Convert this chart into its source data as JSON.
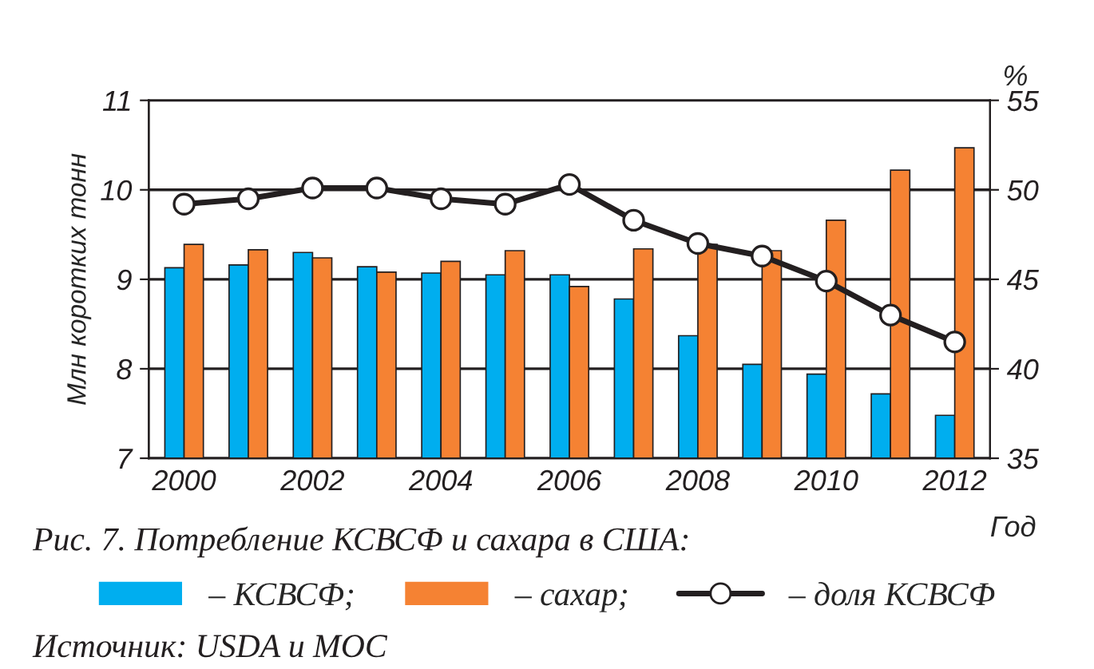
{
  "chart_data": {
    "type": "bar",
    "categories": [
      "2000",
      null,
      "2002",
      null,
      "2004",
      null,
      "2006",
      null,
      "2008",
      null,
      "2010",
      null,
      "2012"
    ],
    "xlabel": "Год",
    "ylabel": "Млн коротких тонн",
    "y2label": "%",
    "ylim": [
      7,
      11
    ],
    "yticks": [
      7,
      8,
      9,
      10,
      11
    ],
    "y2lim": [
      35,
      55
    ],
    "y2ticks": [
      35,
      40,
      45,
      50,
      55
    ],
    "grid": "y",
    "legend": "bottom",
    "annotations": [
      "Рис. 7. Потребление КСВСФ и сахара в США:",
      "Источник: USDA и МОС"
    ],
    "series": [
      {
        "name": "– КСВСФ;",
        "color": "#00aeef",
        "values": [
          9.13,
          9.16,
          9.3,
          9.14,
          9.07,
          9.05,
          9.05,
          8.78,
          8.37,
          8.05,
          7.94,
          7.72,
          7.48
        ]
      },
      {
        "name": "– сахар;",
        "color": "#f58233",
        "values": [
          9.39,
          9.33,
          9.24,
          9.08,
          9.2,
          9.32,
          8.92,
          9.34,
          9.39,
          9.32,
          9.66,
          10.22,
          10.47
        ]
      },
      {
        "name": "– доля КСВСФ",
        "type": "line",
        "axis": "y2",
        "color": "#231f20",
        "marker": "circle",
        "line_style": "solid",
        "values": [
          49.2,
          49.5,
          50.1,
          50.1,
          49.5,
          49.2,
          50.3,
          48.3,
          47.0,
          46.3,
          44.9,
          43.0,
          41.5
        ]
      }
    ]
  }
}
